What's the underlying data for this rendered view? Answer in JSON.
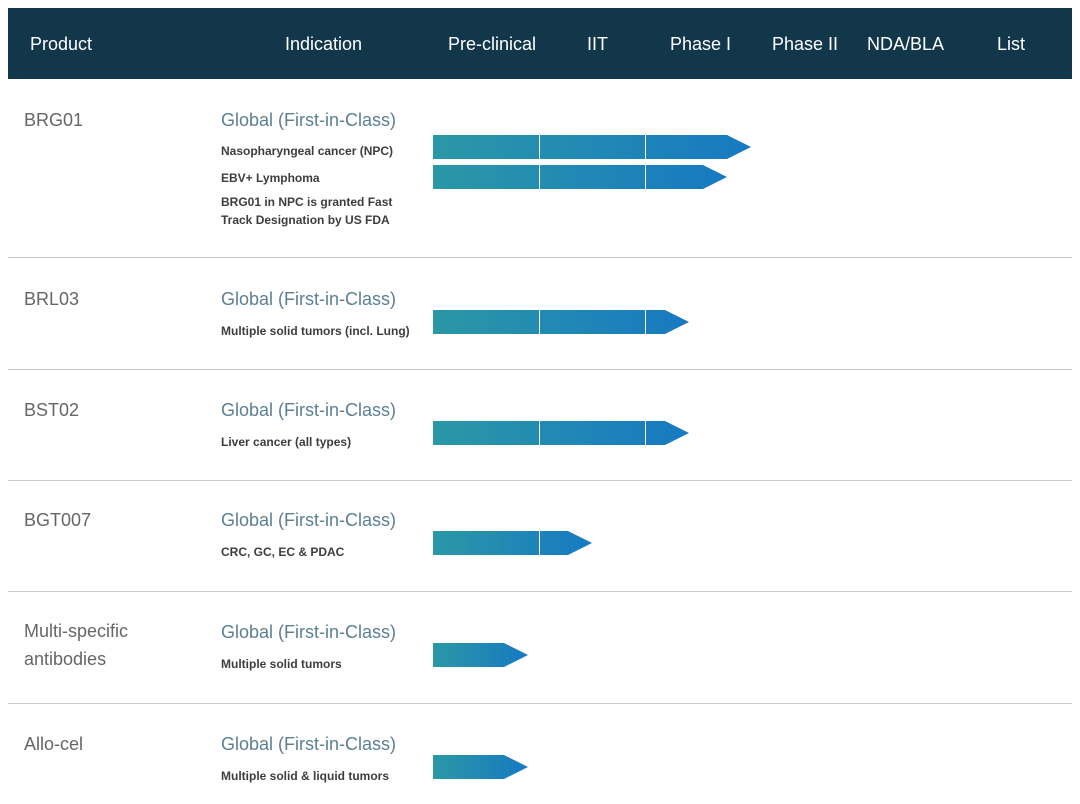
{
  "header": {
    "columns": [
      "Product",
      "Indication",
      "Pre-clinical",
      "IIT",
      "Phase I",
      "Phase II",
      "NDA/BLA",
      "List"
    ]
  },
  "rows": [
    {
      "product": "BRG01",
      "region": "Global (First-in-Class)",
      "indications": [
        "Nasopharyngeal cancer (NPC)",
        "EBV+ Lymphoma"
      ],
      "note": "BRG01 in NPC is granted Fast Track Designation by US FDA"
    },
    {
      "product": "BRL03",
      "region": "Global (First-in-Class)",
      "indications": [
        "Multiple solid tumors (incl. Lung)"
      ]
    },
    {
      "product": "BST02",
      "region": "Global (First-in-Class)",
      "indications": [
        "Liver cancer (all types)"
      ]
    },
    {
      "product": "BGT007",
      "region": "Global (First-in-Class)",
      "indications": [
        "CRC, GC, EC & PDAC"
      ]
    },
    {
      "product": "Multi-specific antibodies",
      "region": "Global (First-in-Class)",
      "indications": [
        "Multiple solid tumors"
      ]
    },
    {
      "product": "Allo-cel",
      "region": "Global (First-in-Class)",
      "indications": [
        "Multiple solid & liquid tumors"
      ]
    }
  ]
}
